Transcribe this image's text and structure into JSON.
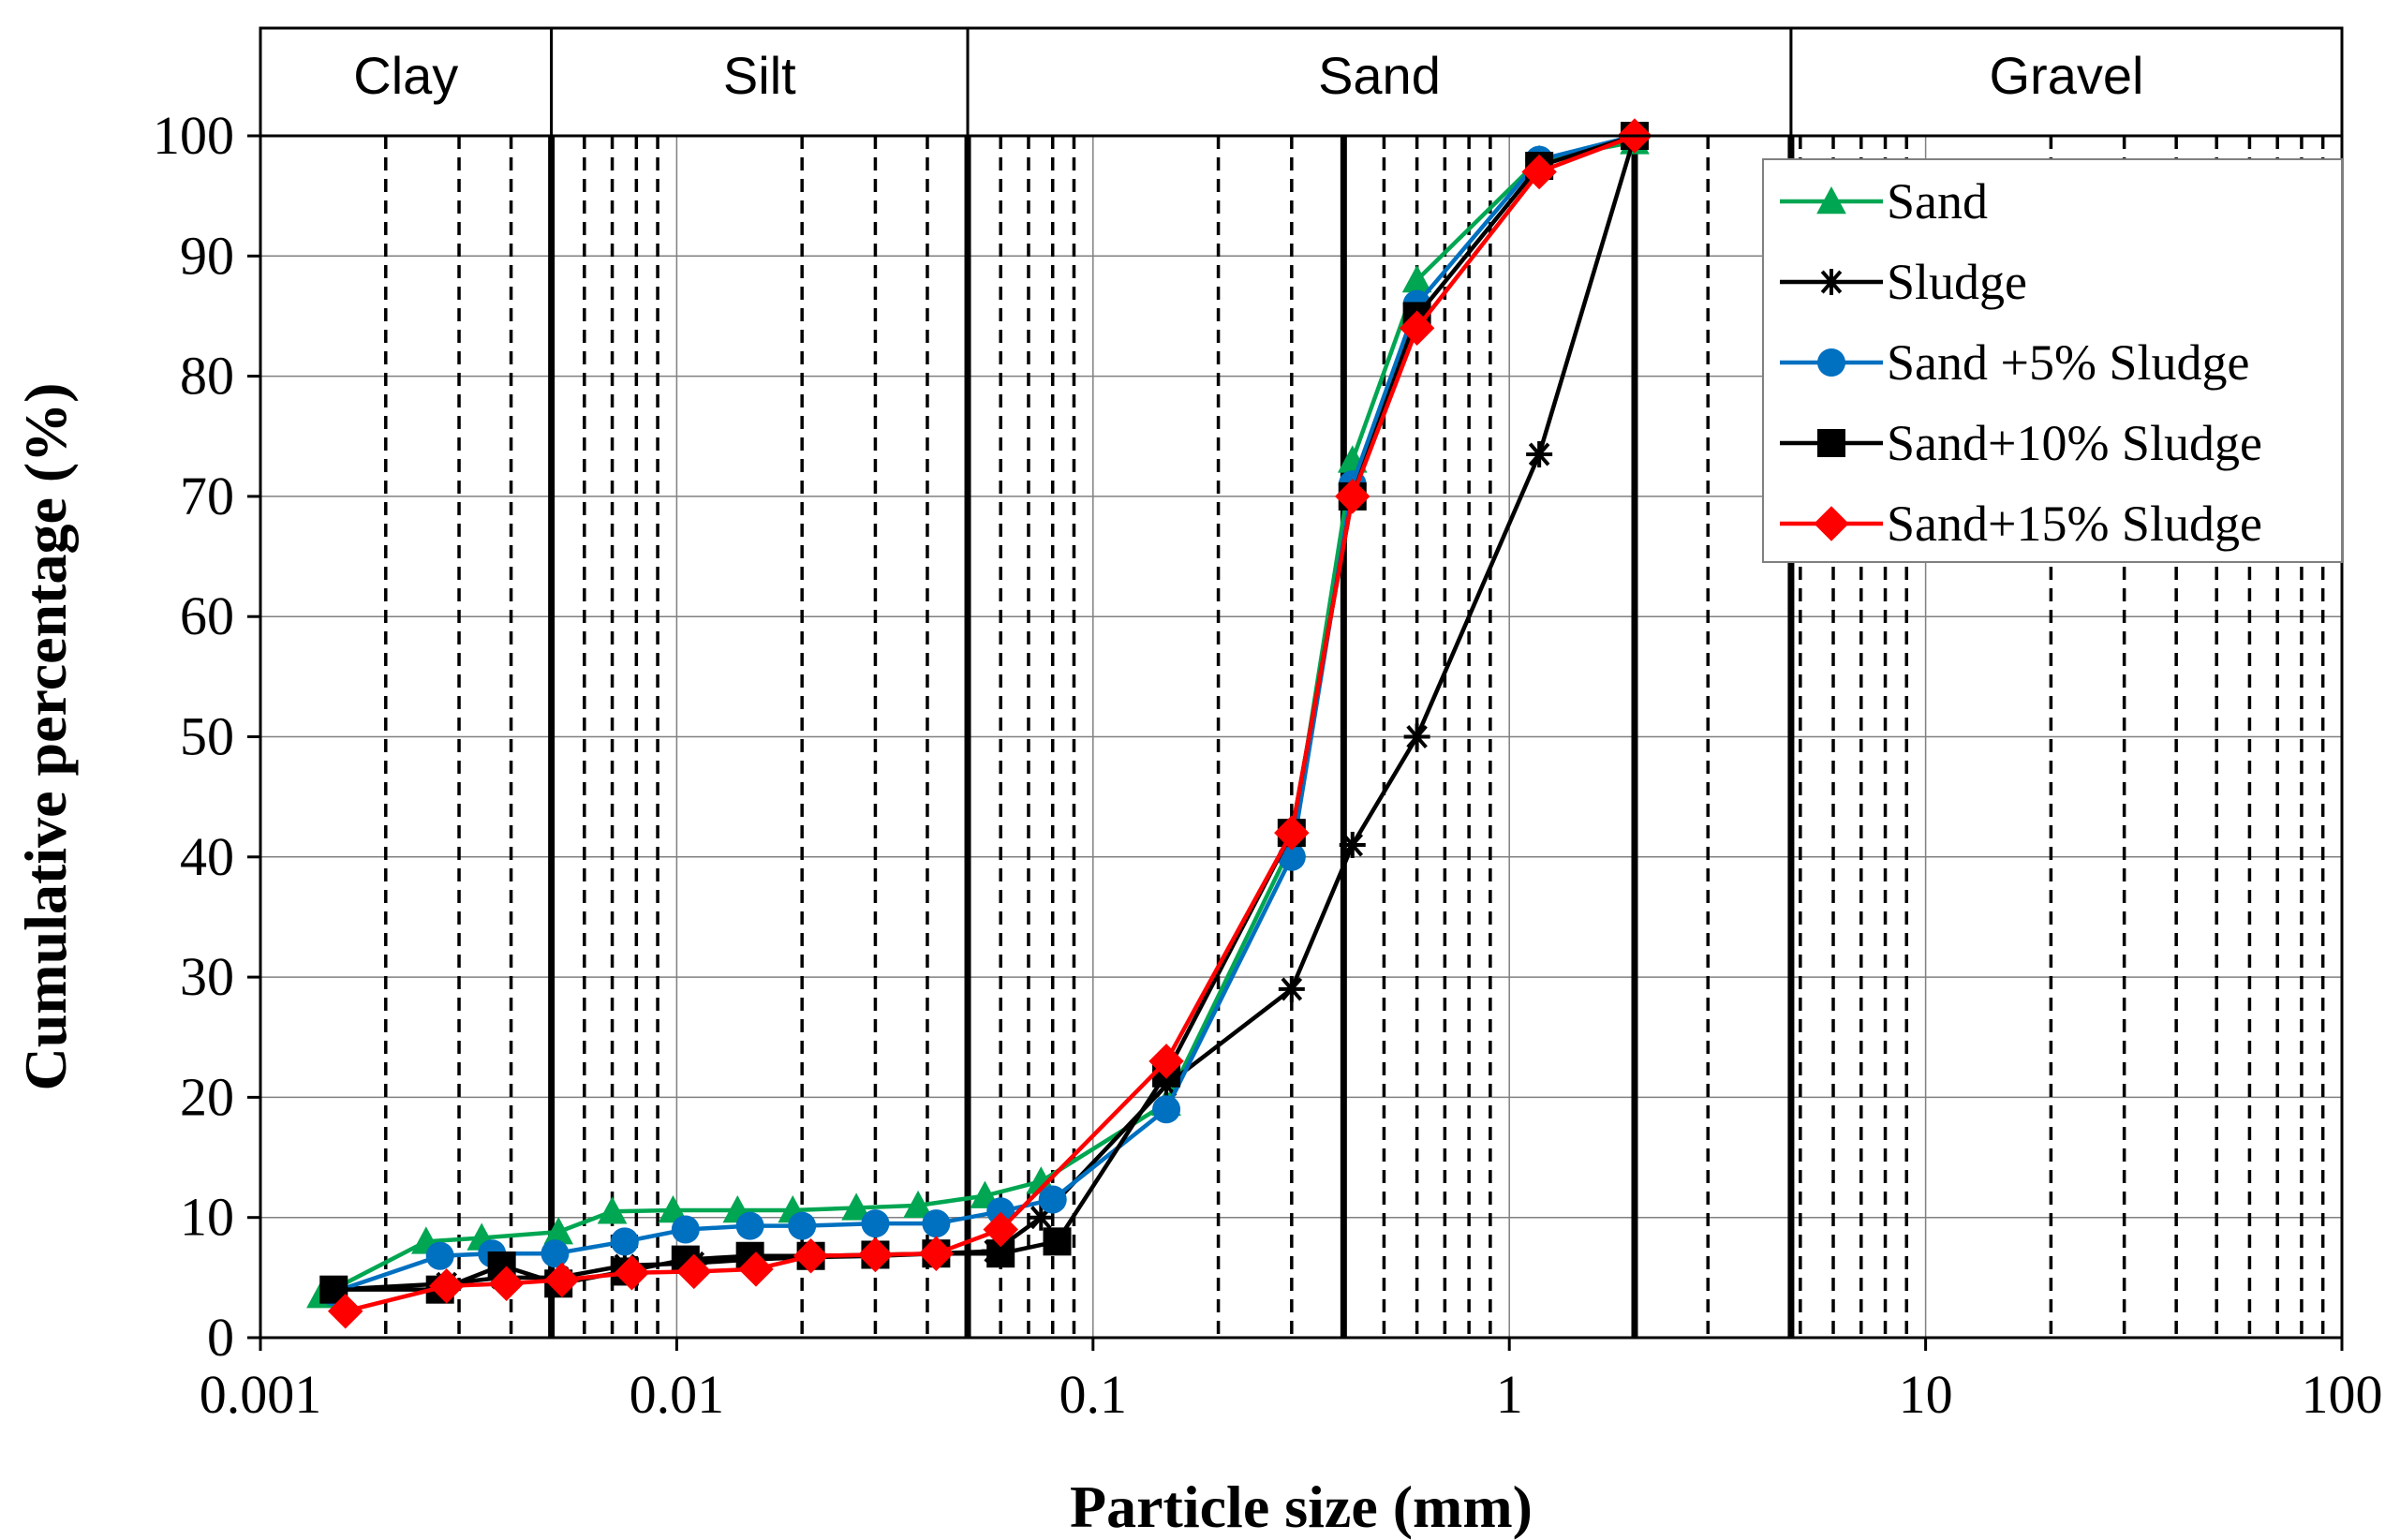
{
  "chart_data": {
    "type": "line",
    "x_scale": "log",
    "xlabel": "Particle size (mm)",
    "ylabel": "Cumulative percentage (%)",
    "xlim": [
      0.001,
      100
    ],
    "ylim": [
      0,
      100
    ],
    "x_tick_labels": [
      "0.001",
      "0.01",
      "0.1",
      "1",
      "10",
      "100"
    ],
    "x_ticks": [
      0.001,
      0.01,
      0.1,
      1,
      10,
      100
    ],
    "y_ticks": [
      0,
      10,
      20,
      30,
      40,
      50,
      60,
      70,
      80,
      90,
      100
    ],
    "y_tick_labels": [
      "0",
      "10",
      "20",
      "30",
      "40",
      "50",
      "60",
      "70",
      "80",
      "90",
      "100"
    ],
    "legend_position": "top-right",
    "zones": [
      {
        "label": "Clay",
        "from": 0.001,
        "to": 0.005
      },
      {
        "label": "Silt",
        "from": 0.005,
        "to": 0.05
      },
      {
        "label": "Sand",
        "from": 0.05,
        "to": 4.75
      },
      {
        "label": "Gravel",
        "from": 4.75,
        "to": 100
      }
    ],
    "zone_boundaries": [
      0.005,
      0.05,
      0.4,
      2,
      4.75
    ],
    "dashed_gridlines": [
      0.002,
      0.003,
      0.004,
      0.006,
      0.007,
      0.008,
      0.009,
      0.02,
      0.03,
      0.04,
      0.06,
      0.07,
      0.08,
      0.09,
      0.2,
      0.3,
      0.5,
      0.6,
      0.7,
      0.8,
      0.9,
      3,
      5,
      6,
      7,
      8,
      9,
      20,
      30,
      40,
      50,
      60,
      70,
      80,
      90
    ],
    "series": [
      {
        "name": "Sand",
        "color": "#00A651",
        "marker": "triangle",
        "x": [
          0.0014,
          0.0025,
          0.0034,
          0.0052,
          0.007,
          0.0098,
          0.014,
          0.019,
          0.027,
          0.038,
          0.055,
          0.075,
          0.15,
          0.3,
          0.42,
          0.6,
          1.18,
          2.0
        ],
        "y": [
          3.5,
          8,
          8.3,
          8.8,
          10.5,
          10.6,
          10.6,
          10.6,
          10.8,
          11,
          11.8,
          13,
          19.5,
          41,
          73,
          88,
          98,
          99.5
        ]
      },
      {
        "name": "Sludge",
        "color": "#000000",
        "marker": "star",
        "x": [
          0.0015,
          0.0028,
          0.0038,
          0.0052,
          0.0075,
          0.011,
          0.015,
          0.021,
          0.03,
          0.042,
          0.058,
          0.075,
          0.15,
          0.3,
          0.42,
          0.6,
          1.18,
          2.0
        ],
        "y": [
          4,
          4.5,
          5,
          5,
          6,
          6.2,
          6.5,
          6.7,
          6.8,
          7,
          7.2,
          10,
          21,
          29,
          41,
          50,
          73.5,
          100
        ]
      },
      {
        "name": "Sand +5% Sludge",
        "color": "#0070C0",
        "marker": "circle",
        "x": [
          0.0015,
          0.0027,
          0.0036,
          0.0051,
          0.0075,
          0.0105,
          0.015,
          0.02,
          0.03,
          0.042,
          0.06,
          0.08,
          0.15,
          0.3,
          0.42,
          0.6,
          1.18,
          2.0
        ],
        "y": [
          3.8,
          6.8,
          7,
          7,
          8,
          9,
          9.3,
          9.3,
          9.5,
          9.5,
          10.5,
          11.5,
          19,
          40,
          71,
          86,
          98,
          100
        ]
      },
      {
        "name": "Sand+10%  Sludge",
        "color": "#000000",
        "marker": "square",
        "x": [
          0.0015,
          0.0027,
          0.0038,
          0.0052,
          0.0075,
          0.0105,
          0.015,
          0.021,
          0.03,
          0.042,
          0.06,
          0.082,
          0.15,
          0.3,
          0.42,
          0.6,
          1.18,
          2.0
        ],
        "y": [
          4,
          4,
          6,
          4.5,
          5.5,
          6.5,
          6.8,
          6.8,
          6.9,
          7,
          7,
          8,
          22,
          42,
          70,
          85,
          97.5,
          100
        ]
      },
      {
        "name": "Sand+15% Sludge",
        "color": "#FF0000",
        "marker": "diamond",
        "x": [
          0.0016,
          0.0028,
          0.0039,
          0.0053,
          0.0078,
          0.011,
          0.0155,
          0.021,
          0.03,
          0.042,
          0.06,
          0.15,
          0.3,
          0.42,
          0.6,
          1.18,
          2.0
        ],
        "y": [
          2.2,
          4.3,
          4.5,
          4.8,
          5.4,
          5.5,
          5.7,
          6.8,
          6.9,
          7,
          9,
          23,
          42,
          70,
          84,
          97,
          100
        ]
      }
    ]
  }
}
